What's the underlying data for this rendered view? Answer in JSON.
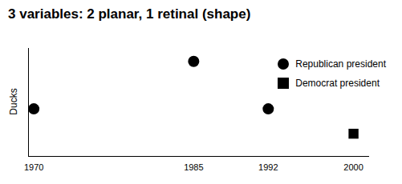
{
  "chart_data": {
    "type": "scatter",
    "title": "3 variables: 2 planar, 1 retinal (shape)",
    "y_label": "Ducks",
    "xlim": [
      1969.5,
      2001.5
    ],
    "xticks": [
      1970,
      1985,
      1992,
      2000
    ],
    "ylim": [
      0,
      10
    ],
    "tick_labels": "x",
    "legend": "top-right",
    "series": [
      {
        "name": "Republican president",
        "color": "#000000",
        "marker": "circle",
        "x": [
          1970,
          1985,
          1992
        ],
        "values": [
          4.4,
          8.8,
          4.4
        ]
      },
      {
        "name": "Democrat president",
        "color": "#000000",
        "marker": "square",
        "x": [
          2000
        ],
        "values": [
          2.1
        ]
      }
    ]
  }
}
